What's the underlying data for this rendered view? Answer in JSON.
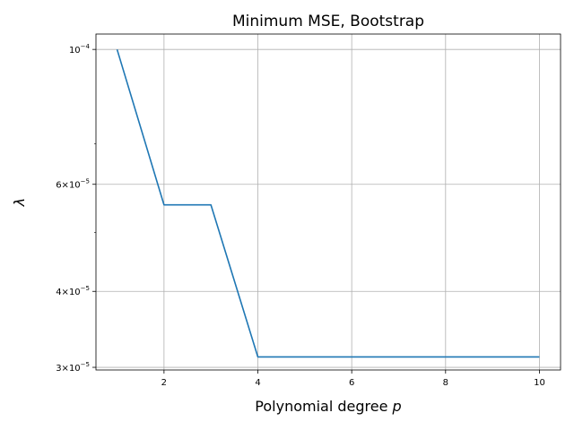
{
  "chart_data": {
    "type": "line",
    "title": "Minimum MSE, Bootstrap",
    "xlabel_main": "Polynomial degree ",
    "xlabel_var": "p",
    "ylabel": "λ",
    "x_ticks": [
      2,
      4,
      6,
      8,
      10
    ],
    "x_tick_labels": [
      "2",
      "4",
      "6",
      "8",
      "10"
    ],
    "y_scale": "log",
    "y_ticks": [
      {
        "value": 0.0001,
        "mantissa": "",
        "base": "10",
        "exp": "−4"
      },
      {
        "value": 6e-05,
        "mantissa": "6×",
        "base": "10",
        "exp": "−5"
      },
      {
        "value": 4e-05,
        "mantissa": "4×",
        "base": "10",
        "exp": "−5"
      },
      {
        "value": 3e-05,
        "mantissa": "3×",
        "base": "10",
        "exp": "−5"
      }
    ],
    "y_minor_ticks": [
      7e-05,
      5e-05
    ],
    "xlim": [
      0.55,
      10.45
    ],
    "ylim": [
      2.97e-05,
      0.000106
    ],
    "grid": true,
    "series": [
      {
        "color": "#1f77b4",
        "x": [
          1,
          2,
          3,
          4,
          5,
          6,
          7,
          8,
          9,
          10
        ],
        "y": [
          0.0001,
          5.55e-05,
          5.55e-05,
          3.12e-05,
          3.12e-05,
          3.12e-05,
          3.12e-05,
          3.12e-05,
          3.12e-05,
          3.12e-05
        ]
      }
    ]
  }
}
